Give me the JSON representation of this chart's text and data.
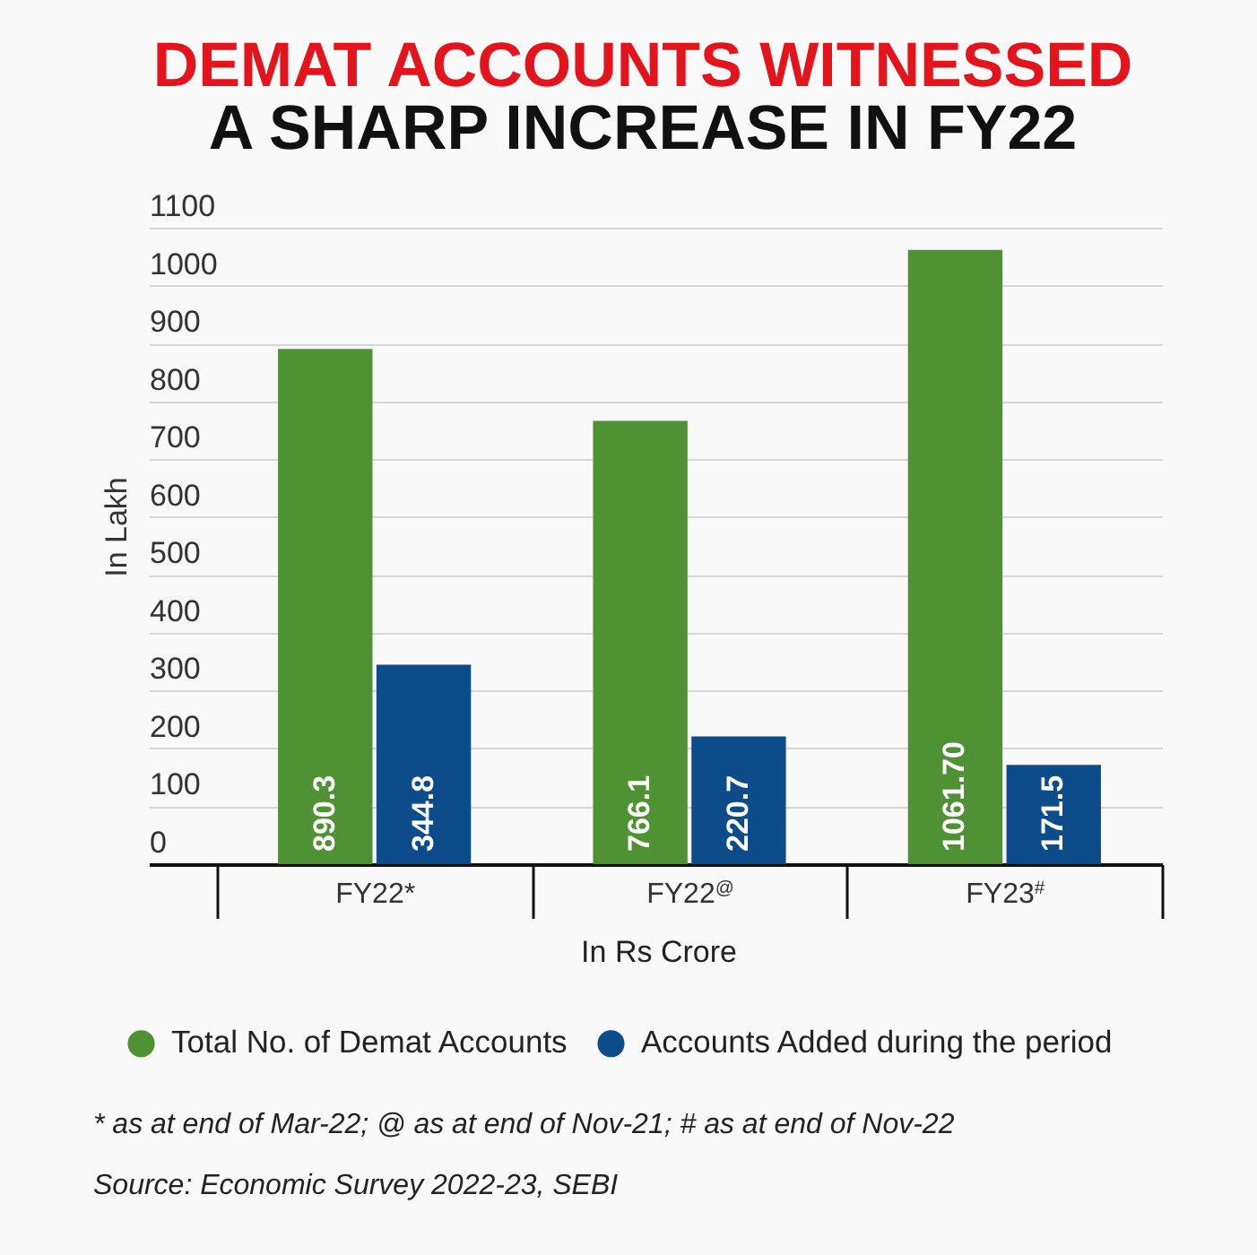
{
  "chart_data": {
    "type": "bar",
    "title": "DEMAT ACCOUNTS WITNESSED",
    "subtitle": "A SHARP INCREASE IN FY22",
    "xlabel": "In Rs Crore",
    "ylabel": "In Lakh",
    "categories": [
      "FY22*",
      "FY22$^{@}$",
      "FY23$^{#}$"
    ],
    "series": [
      {
        "name": "Total No. of Demat Accounts",
        "color": "#4f9234",
        "values": [
          890.3,
          766.1,
          1061.7
        ],
        "value_labels": [
          "890.3",
          "766.1",
          "1061.70"
        ]
      },
      {
        "name": "Accounts Added during the period",
        "color": "#0d4c8b",
        "values": [
          344.8,
          220.7,
          171.5
        ],
        "value_labels": [
          "344.8",
          "220.7",
          "171.5"
        ]
      }
    ],
    "ylim": [
      0,
      1100
    ],
    "yticks": [
      0,
      100,
      200,
      300,
      400,
      500,
      600,
      700,
      800,
      900,
      1000,
      1100
    ],
    "grid": "y",
    "legend": "bottom",
    "annotations": [
      "* as at end of Mar-22; @ as at end of Nov-21; # as at end of Nov-22",
      "Source: Economic Survey 2022-23, SEBI"
    ]
  }
}
